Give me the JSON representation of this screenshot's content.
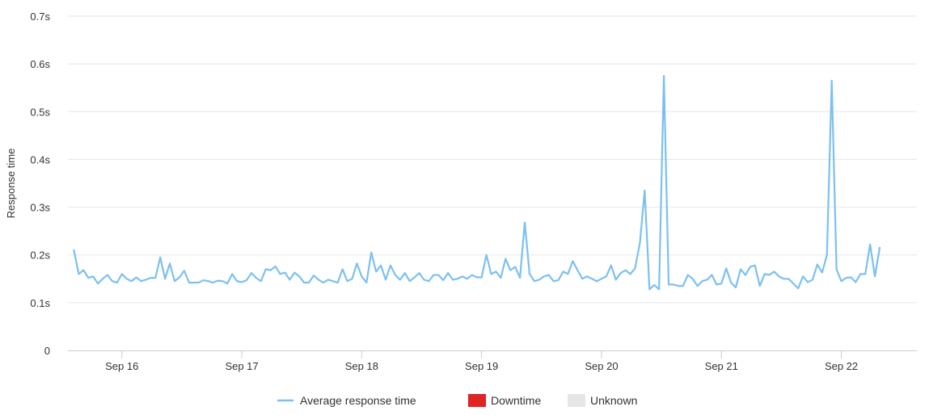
{
  "chart_data": {
    "type": "line",
    "ylabel": "Response time",
    "xlabel": "",
    "ylim": [
      0,
      0.7
    ],
    "y_ticks": [
      {
        "value": 0,
        "label": "0"
      },
      {
        "value": 0.1,
        "label": "0.1s"
      },
      {
        "value": 0.2,
        "label": "0.2s"
      },
      {
        "value": 0.3,
        "label": "0.3s"
      },
      {
        "value": 0.4,
        "label": "0.4s"
      },
      {
        "value": 0.5,
        "label": "0.5s"
      },
      {
        "value": 0.6,
        "label": "0.6s"
      },
      {
        "value": 0.7,
        "label": "0.7s"
      }
    ],
    "xlim": [
      15.55,
      22.63
    ],
    "x_ticks": [
      {
        "value": 16,
        "label": "Sep 16"
      },
      {
        "value": 17,
        "label": "Sep 17"
      },
      {
        "value": 18,
        "label": "Sep 18"
      },
      {
        "value": 19,
        "label": "Sep 19"
      },
      {
        "value": 20,
        "label": "Sep 20"
      },
      {
        "value": 21,
        "label": "Sep 21"
      },
      {
        "value": 22,
        "label": "Sep 22"
      }
    ],
    "grid": "horizontal",
    "legend_position": "bottom-center",
    "legend": [
      {
        "label": "Average response time",
        "color": "#7cc0f1",
        "marker": "line"
      },
      {
        "label": "Downtime",
        "color": "#e02424",
        "marker": "square"
      },
      {
        "label": "Unknown",
        "color": "#e6e6e6",
        "marker": "square"
      }
    ],
    "series": [
      {
        "name": "Average response time",
        "color": "#7cc0f1",
        "x_start": 15.6,
        "x_step": 0.04,
        "values": [
          0.21,
          0.16,
          0.168,
          0.152,
          0.155,
          0.14,
          0.15,
          0.158,
          0.145,
          0.142,
          0.16,
          0.15,
          0.145,
          0.153,
          0.145,
          0.148,
          0.152,
          0.152,
          0.195,
          0.15,
          0.182,
          0.145,
          0.153,
          0.167,
          0.142,
          0.142,
          0.142,
          0.147,
          0.145,
          0.142,
          0.146,
          0.145,
          0.14,
          0.16,
          0.145,
          0.143,
          0.147,
          0.162,
          0.152,
          0.145,
          0.17,
          0.168,
          0.176,
          0.16,
          0.163,
          0.148,
          0.163,
          0.155,
          0.142,
          0.142,
          0.157,
          0.148,
          0.142,
          0.148,
          0.145,
          0.142,
          0.17,
          0.145,
          0.15,
          0.182,
          0.155,
          0.142,
          0.205,
          0.165,
          0.178,
          0.148,
          0.178,
          0.158,
          0.148,
          0.162,
          0.145,
          0.153,
          0.162,
          0.148,
          0.145,
          0.158,
          0.158,
          0.147,
          0.162,
          0.148,
          0.15,
          0.155,
          0.15,
          0.158,
          0.153,
          0.153,
          0.2,
          0.16,
          0.165,
          0.152,
          0.192,
          0.168,
          0.175,
          0.152,
          0.268,
          0.16,
          0.145,
          0.148,
          0.155,
          0.158,
          0.145,
          0.147,
          0.165,
          0.16,
          0.187,
          0.168,
          0.15,
          0.155,
          0.15,
          0.145,
          0.15,
          0.155,
          0.178,
          0.148,
          0.162,
          0.168,
          0.16,
          0.172,
          0.225,
          0.335,
          0.128,
          0.137,
          0.128,
          0.575,
          0.138,
          0.138,
          0.135,
          0.135,
          0.158,
          0.15,
          0.135,
          0.145,
          0.148,
          0.158,
          0.138,
          0.14,
          0.172,
          0.142,
          0.132,
          0.17,
          0.158,
          0.175,
          0.178,
          0.135,
          0.16,
          0.158,
          0.165,
          0.155,
          0.15,
          0.15,
          0.14,
          0.13,
          0.155,
          0.143,
          0.148,
          0.18,
          0.163,
          0.2,
          0.565,
          0.17,
          0.145,
          0.152,
          0.153,
          0.143,
          0.16,
          0.16,
          0.222,
          0.155,
          0.215
        ]
      }
    ]
  }
}
